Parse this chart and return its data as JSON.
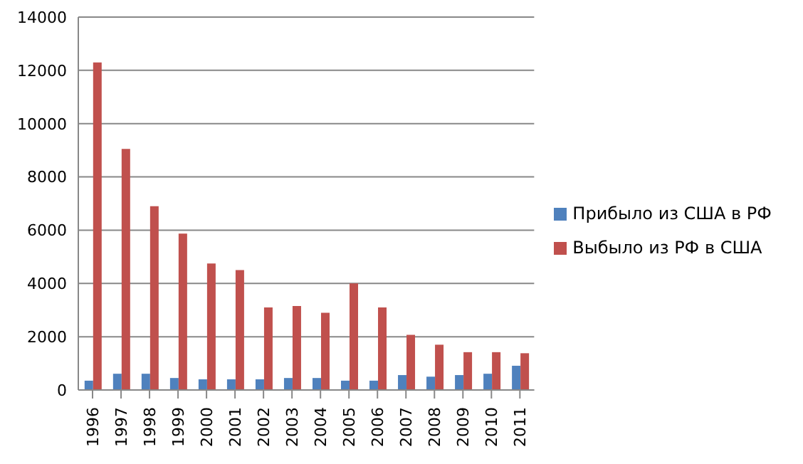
{
  "chart_data": {
    "type": "bar",
    "categories": [
      "1996",
      "1997",
      "1998",
      "1999",
      "2000",
      "2001",
      "2002",
      "2003",
      "2004",
      "2005",
      "2006",
      "2007",
      "2008",
      "2009",
      "2010",
      "2011"
    ],
    "series": [
      {
        "name": "Прибыло из США в РФ",
        "color": "#4f81bd",
        "values": [
          350,
          610,
          610,
          450,
          400,
          400,
          400,
          450,
          450,
          350,
          350,
          560,
          500,
          560,
          610,
          910
        ]
      },
      {
        "name": "Выбыло из РФ в США",
        "color": "#c0504d",
        "values": [
          12300,
          9050,
          6900,
          5870,
          4750,
          4500,
          3100,
          3150,
          2900,
          4000,
          3100,
          2070,
          1700,
          1420,
          1420,
          1380
        ]
      }
    ],
    "ylim": [
      0,
      14000
    ],
    "yticks": [
      0,
      2000,
      4000,
      6000,
      8000,
      10000,
      12000,
      14000
    ],
    "grid": "y",
    "legend": "right"
  }
}
